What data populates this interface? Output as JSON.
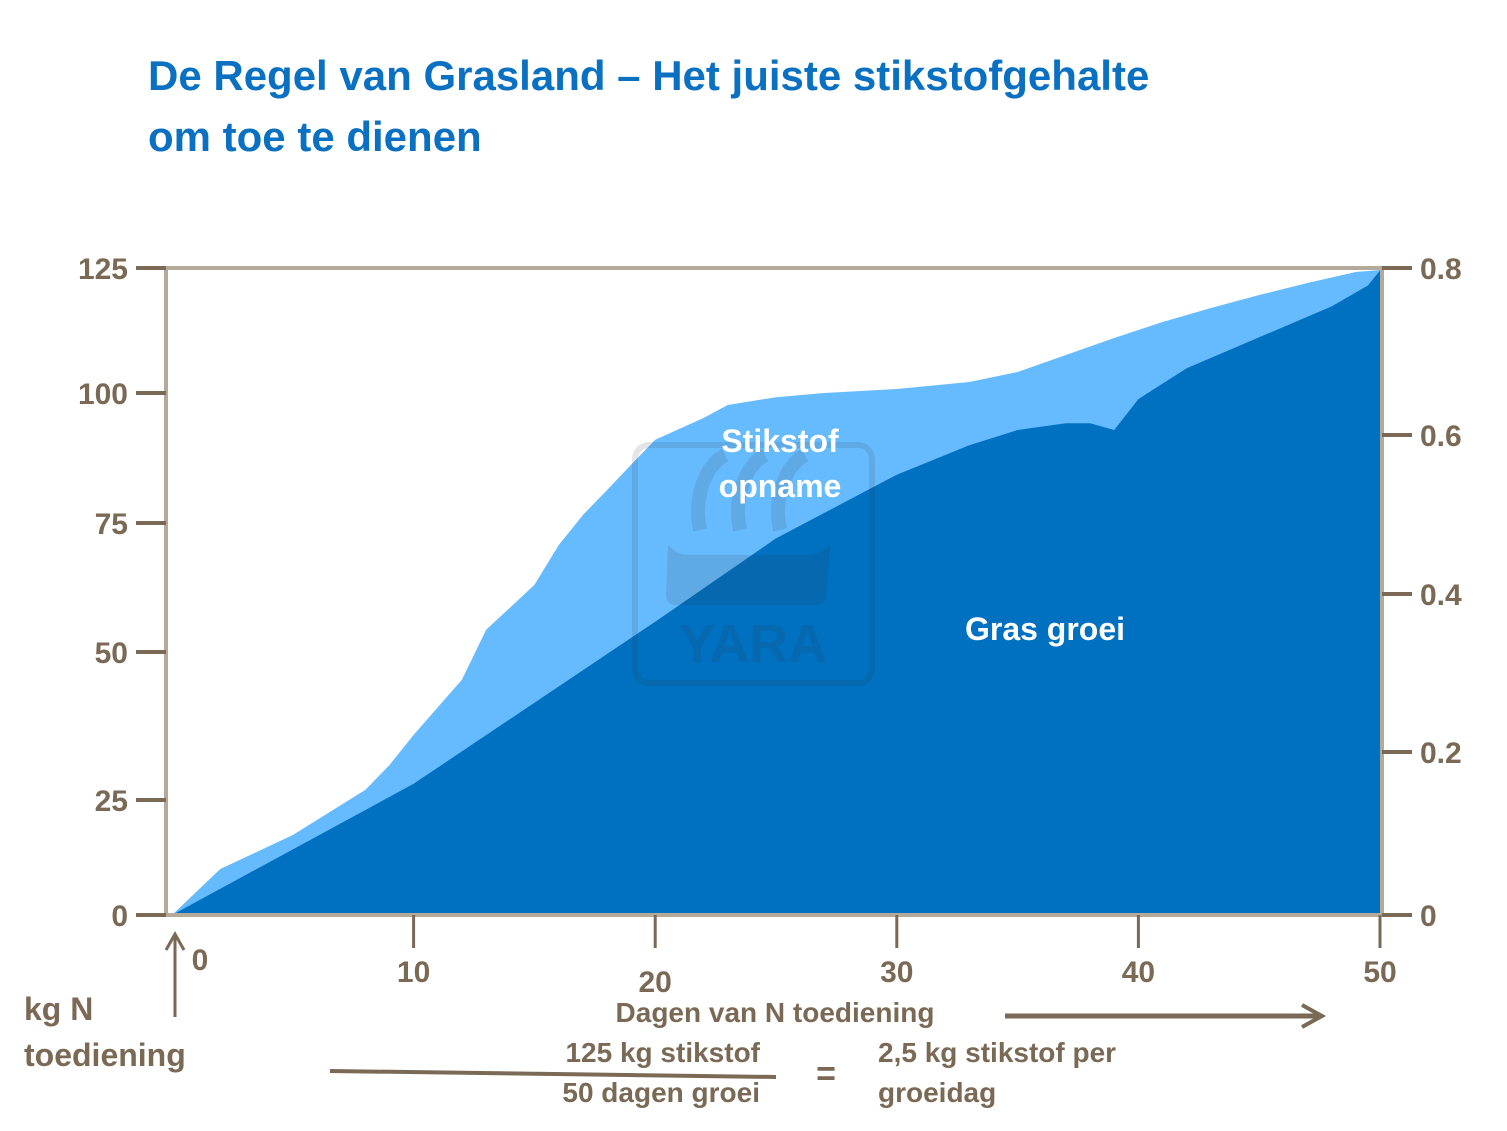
{
  "chart_data": {
    "type": "area",
    "title": "De Regel van Grasland – Het juiste stikstofgehalte om toe te dienen",
    "title_lines": [
      "De Regel van Grasland – Het juiste stikstofgehalte",
      "om toe te dienen"
    ],
    "xlabel": "Dagen van N toediening",
    "ylabel": "kg N toediening",
    "ylabel_lines": [
      "kg N",
      "toediening"
    ],
    "xlim": [
      0,
      50
    ],
    "ylim_left": [
      0,
      125
    ],
    "ylim_right": [
      0,
      0.8
    ],
    "x_ticks": [
      "0",
      "10",
      "20",
      "30",
      "40",
      "50"
    ],
    "y_ticks_left": [
      "0",
      "25",
      "50",
      "75",
      "100",
      "125"
    ],
    "y_ticks_right": [
      "0",
      "0.2",
      "0.4",
      "0.6",
      "0.8"
    ],
    "grid": false,
    "series": [
      {
        "name": "Stikstof opname",
        "name_lines": [
          "Stikstof",
          "opname"
        ],
        "axis": "left",
        "color": "#66bbff",
        "x": [
          0,
          2,
          5,
          8,
          9,
          10,
          12,
          13,
          15,
          16,
          17,
          18,
          19,
          20,
          22,
          23,
          25,
          27,
          30,
          33,
          35,
          37,
          39,
          41,
          43,
          45,
          47,
          49,
          50
        ],
        "y": [
          0,
          10,
          17.4,
          26.7,
          30.9,
          36,
          45.3,
          54.3,
          63,
          70.7,
          76.5,
          81.3,
          86.2,
          91,
          95.2,
          97.7,
          99.2,
          100,
          100.8,
          102.2,
          104.2,
          107.6,
          111,
          114.2,
          117,
          119.6,
          122,
          124.2,
          124.6
        ]
      },
      {
        "name": "Gras groei",
        "axis": "right",
        "color": "#0070c0",
        "x": [
          0,
          10,
          20,
          25,
          30,
          33,
          35,
          37,
          38,
          39,
          40,
          42,
          45,
          48,
          49.5,
          50
        ],
        "y": [
          0,
          0.161,
          0.365,
          0.47,
          0.55,
          0.587,
          0.606,
          0.614,
          0.614,
          0.606,
          0.643,
          0.68,
          0.717,
          0.754,
          0.779,
          0.797
        ]
      }
    ],
    "annotations": {
      "fraction_numerator": "125 kg stikstof",
      "fraction_denominator": "50 dagen groei",
      "equals": "=",
      "result_lines": [
        "2,5 kg stikstof per",
        "groeidag"
      ]
    },
    "watermark": "YARA",
    "colors": {
      "title": "#0a70c2",
      "axis": "#7a6a55",
      "frame": "#b5a99a"
    }
  }
}
